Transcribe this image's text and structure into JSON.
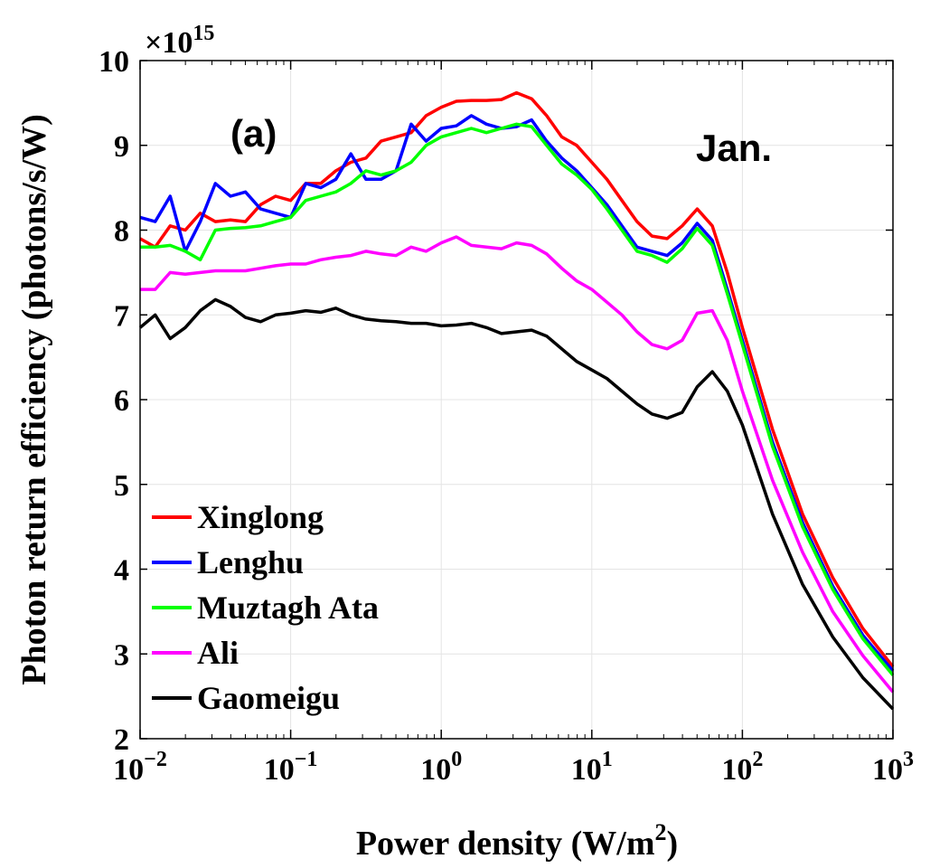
{
  "chart_data": {
    "type": "line",
    "title": "",
    "xlabel": "Power density (W/m",
    "xlabel_sup": "2",
    "xlabel_suffix": ")",
    "ylabel": "Photon return efficiency (photons/s/W)",
    "x_scale": "log10",
    "xlim_exp": [
      -2,
      3
    ],
    "ylim": [
      2,
      10
    ],
    "y_multiplier": "×10",
    "y_multiplier_exp": "15",
    "yticks": [
      2,
      3,
      4,
      5,
      6,
      7,
      8,
      9,
      10
    ],
    "xtick_exps": [
      -2,
      -1,
      0,
      1,
      2,
      3
    ],
    "xtick_base": "10",
    "grid": true,
    "annotations": [
      "(a)",
      "Jan."
    ],
    "legend_position": "lower-left",
    "log10_x": [
      -2,
      -1.9,
      -1.8,
      -1.7,
      -1.6,
      -1.5,
      -1.4,
      -1.3,
      -1.2,
      -1.1,
      -1.0,
      -0.9,
      -0.8,
      -0.7,
      -0.6,
      -0.5,
      -0.4,
      -0.3,
      -0.2,
      -0.1,
      0.0,
      0.1,
      0.2,
      0.3,
      0.4,
      0.5,
      0.6,
      0.7,
      0.8,
      0.9,
      1.0,
      1.1,
      1.2,
      1.3,
      1.4,
      1.5,
      1.6,
      1.7,
      1.8,
      1.9,
      2.0,
      2.2,
      2.4,
      2.6,
      2.8,
      3.0
    ],
    "series": [
      {
        "name": "Xinglong",
        "color": "#ff0000",
        "values": [
          7.9,
          7.8,
          8.05,
          8.0,
          8.2,
          8.1,
          8.12,
          8.1,
          8.3,
          8.4,
          8.35,
          8.55,
          8.55,
          8.7,
          8.8,
          8.85,
          9.05,
          9.1,
          9.15,
          9.35,
          9.45,
          9.52,
          9.53,
          9.53,
          9.54,
          9.62,
          9.55,
          9.35,
          9.1,
          9.0,
          8.8,
          8.6,
          8.35,
          8.1,
          7.93,
          7.9,
          8.05,
          8.25,
          8.05,
          7.5,
          6.85,
          5.65,
          4.65,
          3.9,
          3.3,
          2.85
        ]
      },
      {
        "name": "Lenghu",
        "color": "#0000ff",
        "values": [
          8.15,
          8.1,
          8.4,
          7.75,
          8.1,
          8.55,
          8.4,
          8.45,
          8.25,
          8.2,
          8.15,
          8.55,
          8.5,
          8.6,
          8.9,
          8.6,
          8.6,
          8.7,
          9.25,
          9.05,
          9.2,
          9.23,
          9.35,
          9.25,
          9.2,
          9.22,
          9.3,
          9.05,
          8.85,
          8.7,
          8.5,
          8.3,
          8.05,
          7.8,
          7.75,
          7.7,
          7.85,
          8.08,
          7.88,
          7.3,
          6.7,
          5.5,
          4.55,
          3.8,
          3.22,
          2.8
        ]
      },
      {
        "name": "Muztagh Ata",
        "color": "#00ff00",
        "values": [
          7.8,
          7.8,
          7.82,
          7.75,
          7.65,
          8.0,
          8.02,
          8.03,
          8.05,
          8.1,
          8.15,
          8.35,
          8.4,
          8.45,
          8.55,
          8.7,
          8.65,
          8.7,
          8.8,
          9.0,
          9.1,
          9.15,
          9.2,
          9.15,
          9.2,
          9.25,
          9.22,
          9.0,
          8.78,
          8.65,
          8.48,
          8.25,
          8.0,
          7.75,
          7.7,
          7.62,
          7.78,
          8.02,
          7.82,
          7.25,
          6.65,
          5.45,
          4.5,
          3.76,
          3.18,
          2.75
        ]
      },
      {
        "name": "Ali",
        "color": "#ff00ff",
        "values": [
          7.3,
          7.3,
          7.5,
          7.48,
          7.5,
          7.52,
          7.52,
          7.52,
          7.55,
          7.58,
          7.6,
          7.6,
          7.65,
          7.68,
          7.7,
          7.75,
          7.72,
          7.7,
          7.8,
          7.75,
          7.85,
          7.92,
          7.82,
          7.8,
          7.78,
          7.85,
          7.82,
          7.72,
          7.55,
          7.4,
          7.3,
          7.15,
          7.0,
          6.8,
          6.65,
          6.6,
          6.7,
          7.02,
          7.05,
          6.7,
          6.1,
          5.05,
          4.2,
          3.5,
          2.98,
          2.55
        ]
      },
      {
        "name": "Gaomeigu",
        "color": "#000000",
        "values": [
          6.85,
          7.0,
          6.72,
          6.85,
          7.05,
          7.18,
          7.1,
          6.97,
          6.92,
          7.0,
          7.02,
          7.05,
          7.03,
          7.08,
          7.0,
          6.95,
          6.93,
          6.92,
          6.9,
          6.9,
          6.87,
          6.88,
          6.9,
          6.85,
          6.78,
          6.8,
          6.82,
          6.75,
          6.6,
          6.45,
          6.35,
          6.25,
          6.1,
          5.95,
          5.83,
          5.78,
          5.85,
          6.15,
          6.33,
          6.1,
          5.7,
          4.65,
          3.82,
          3.2,
          2.72,
          2.35
        ]
      }
    ]
  }
}
